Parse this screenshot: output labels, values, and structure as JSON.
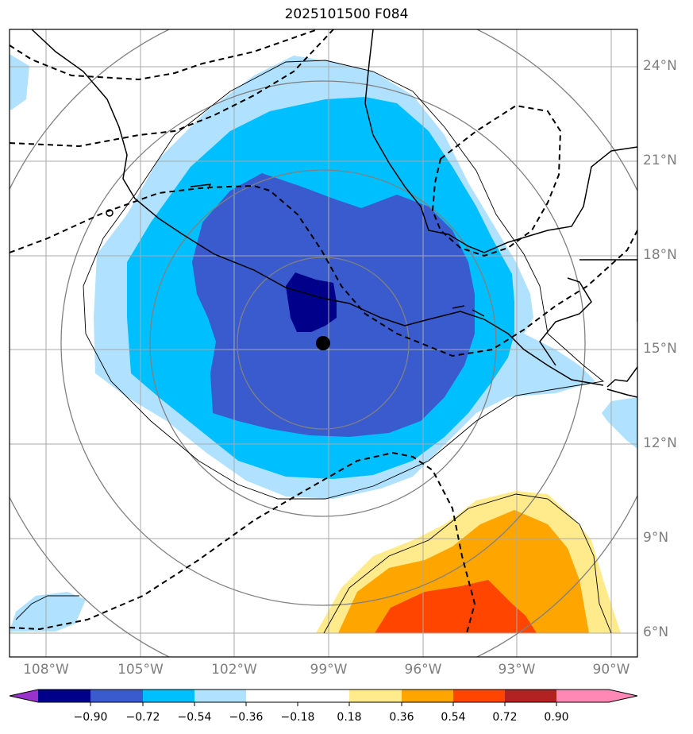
{
  "title": "2025101500 F084",
  "lat_labels": [
    "24°N",
    "21°N",
    "18°N",
    "15°N",
    "12°N",
    "9°N",
    "6°N"
  ],
  "lon_labels": [
    "108°W",
    "105°W",
    "102°W",
    "99°W",
    "96°W",
    "93°W",
    "90°W"
  ],
  "colorbar": {
    "ticks": [
      "−0.90",
      "−0.72",
      "−0.54",
      "−0.36",
      "−0.18",
      "0.18",
      "0.36",
      "0.54",
      "0.72",
      "0.90"
    ],
    "colors": [
      "#9932cc",
      "#00008b",
      "#3a5bcd",
      "#00bfff",
      "#b0e2ff",
      "#ffffff",
      "#ffeb8b",
      "#ffa500",
      "#ff4500",
      "#b22222",
      "#ff88b4"
    ]
  },
  "storm_center": "black-dot"
}
